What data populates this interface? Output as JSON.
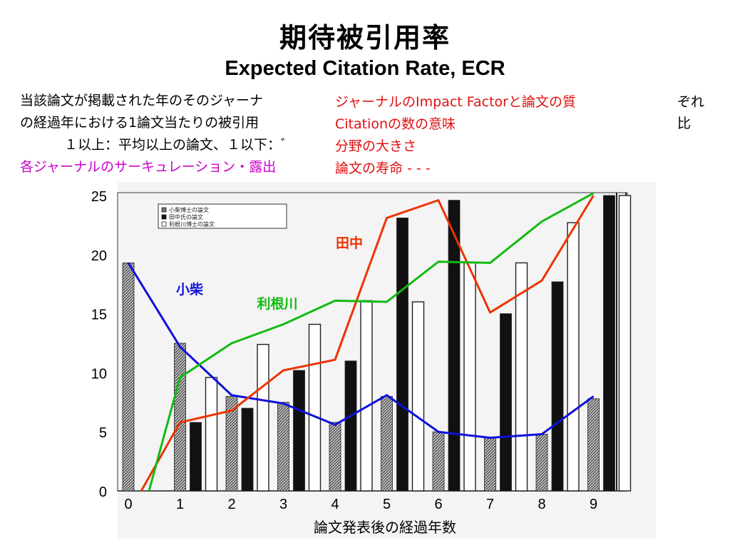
{
  "title_jp": "期待被引用率",
  "title_en": "Expected Citation Rate, ECR",
  "desc_left": {
    "line1": "当該論文が掲載された年のそのジャーナ",
    "line2": "の経過年における1論文当たりの被引用",
    "line3": "１以上：平均以上の論文、１以下：ﾞ",
    "line4": "各ジャーナルのサーキュレーション・露出"
  },
  "desc_mid": {
    "line1": "ジャーナルのImpact Factorと論文の質",
    "line2": "Citationの数の意味",
    "line3": "分野の大きさ",
    "line4": "論文の寿命 - - -"
  },
  "desc_right": {
    "line1": "ぞれ",
    "line2": "比"
  },
  "colors": {
    "koshiba": "#1010dd",
    "tanaka": "#ee3300",
    "tonegawa": "#11bb11",
    "magenta": "#cc00cc",
    "red_text": "#e01010"
  },
  "chart_data": {
    "type": "bar",
    "xlabel": "論文発表後の経過年数",
    "ylabel": "",
    "x": [
      0,
      1,
      2,
      3,
      4,
      5,
      6,
      7,
      8,
      9
    ],
    "x_tick_labels": [
      "0",
      "1",
      "2",
      "3",
      "4",
      "5",
      "6",
      "7",
      "8",
      "9"
    ],
    "y_ticks": [
      0,
      5,
      10,
      15,
      20,
      25
    ],
    "ylim": [
      0,
      25
    ],
    "legend": {
      "position": "top-left",
      "entries": [
        "小柴博士の論文",
        "田中氏の論文",
        "利根川博士の論文"
      ]
    },
    "bar_series": [
      {
        "name": "小柴博士の論文",
        "style": "hatched",
        "values": [
          19.3,
          12.5,
          8,
          7.5,
          5.8,
          8,
          5,
          4.5,
          4.8,
          7.8
        ]
      },
      {
        "name": "田中氏の論文",
        "style": "solid-black",
        "values": [
          0,
          5.8,
          7,
          10.2,
          11,
          23.1,
          24.6,
          15,
          17.7,
          25
        ]
      },
      {
        "name": "利根川博士の論文",
        "style": "white",
        "values": [
          0,
          9.6,
          12.4,
          14.1,
          16.1,
          16,
          19.3,
          19.3,
          22.7,
          25
        ]
      }
    ],
    "line_series": [
      {
        "name": "小柴",
        "color": "#1010dd",
        "x": [
          0,
          1,
          2,
          3,
          4,
          5,
          6,
          7,
          8,
          9
        ],
        "values": [
          19.3,
          12.2,
          8.1,
          7.4,
          5.6,
          8.1,
          5.0,
          4.5,
          4.8,
          8.0
        ]
      },
      {
        "name": "田中",
        "color": "#ee3300",
        "x": [
          0.25,
          1,
          2,
          3,
          4,
          5,
          6,
          7,
          8,
          9
        ],
        "values": [
          0,
          5.8,
          6.8,
          10.2,
          11.1,
          23.1,
          24.6,
          15.1,
          17.8,
          25.0
        ]
      },
      {
        "name": "利根川",
        "color": "#11bb11",
        "x": [
          0.4,
          1,
          2,
          3,
          4,
          5,
          6,
          7,
          8,
          9
        ],
        "values": [
          0,
          9.6,
          12.5,
          14.1,
          16.1,
          16.0,
          19.4,
          19.3,
          22.8,
          25.2
        ]
      }
    ]
  }
}
